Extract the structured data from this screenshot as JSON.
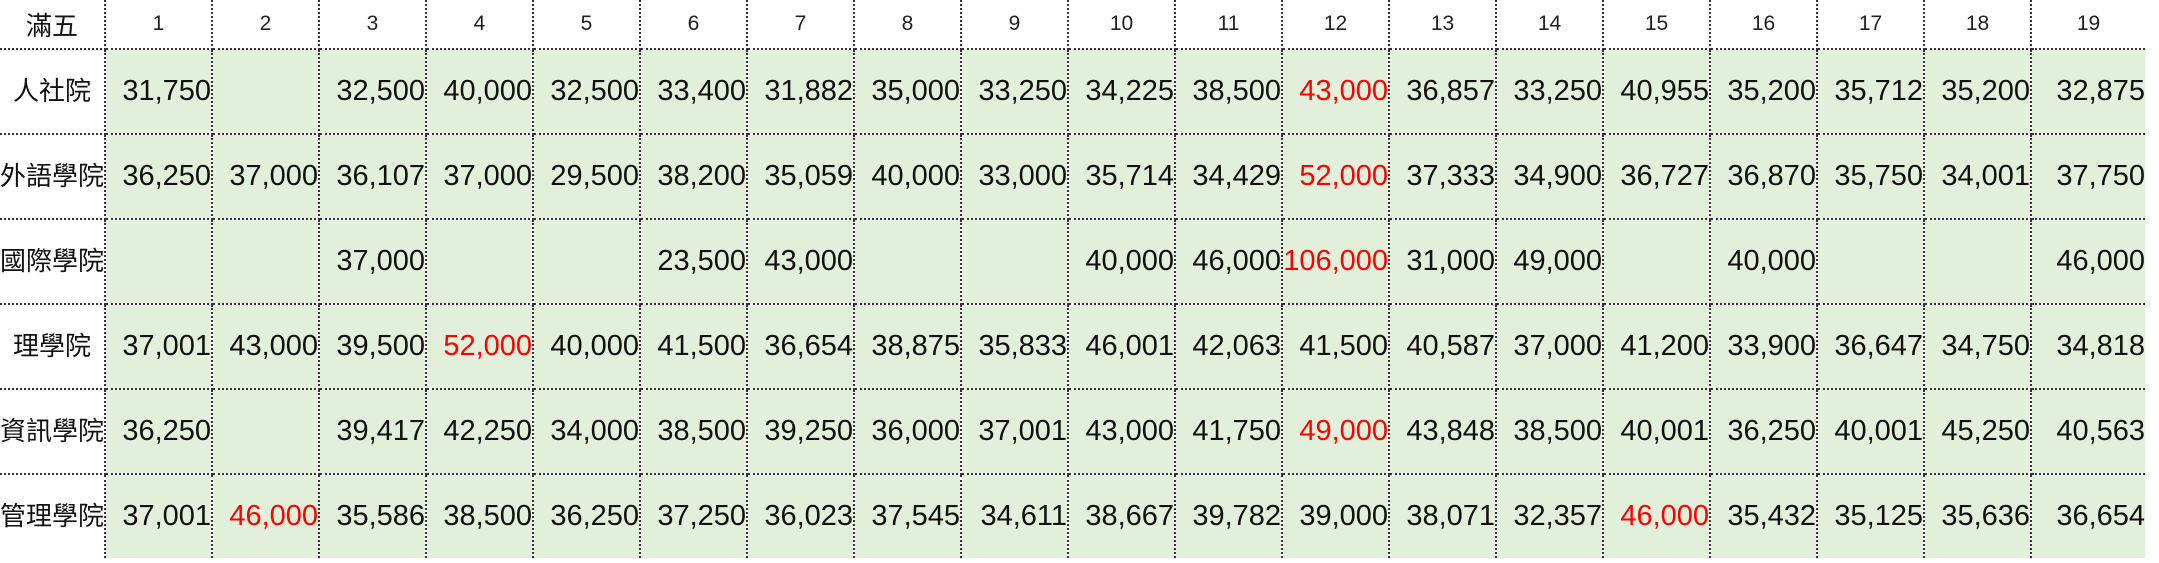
{
  "table": {
    "corner": "滿五",
    "columns": [
      "1",
      "2",
      "3",
      "4",
      "5",
      "6",
      "7",
      "8",
      "9",
      "10",
      "11",
      "12",
      "13",
      "14",
      "15",
      "16",
      "17",
      "18",
      "19"
    ],
    "rows": [
      {
        "label": "人社院",
        "cells": [
          "31,750",
          "",
          "32,500",
          "40,000",
          "32,500",
          "33,400",
          "31,882",
          "35,000",
          "33,250",
          "34,225",
          "38,500",
          "43,000",
          "36,857",
          "33,250",
          "40,955",
          "35,200",
          "35,712",
          "35,200",
          "32,875"
        ],
        "highlight": [
          11
        ]
      },
      {
        "label": "外語學院",
        "cells": [
          "36,250",
          "37,000",
          "36,107",
          "37,000",
          "29,500",
          "38,200",
          "35,059",
          "40,000",
          "33,000",
          "35,714",
          "34,429",
          "52,000",
          "37,333",
          "34,900",
          "36,727",
          "36,870",
          "35,750",
          "34,001",
          "37,750"
        ],
        "highlight": [
          11
        ]
      },
      {
        "label": "國際學院",
        "cells": [
          "",
          "",
          "37,000",
          "",
          "",
          "23,500",
          "43,000",
          "",
          "",
          "40,000",
          "46,000",
          "106,000",
          "31,000",
          "49,000",
          "",
          "40,000",
          "",
          "",
          "46,000"
        ],
        "highlight": [
          11
        ]
      },
      {
        "label": "理學院",
        "cells": [
          "37,001",
          "43,000",
          "39,500",
          "52,000",
          "40,000",
          "41,500",
          "36,654",
          "38,875",
          "35,833",
          "46,001",
          "42,063",
          "41,500",
          "40,587",
          "37,000",
          "41,200",
          "33,900",
          "36,647",
          "34,750",
          "34,818"
        ],
        "highlight": [
          3
        ]
      },
      {
        "label": "資訊學院",
        "cells": [
          "36,250",
          "",
          "39,417",
          "42,250",
          "34,000",
          "38,500",
          "39,250",
          "36,000",
          "37,001",
          "43,000",
          "41,750",
          "49,000",
          "43,848",
          "38,500",
          "40,001",
          "36,250",
          "40,001",
          "45,250",
          "40,563"
        ],
        "highlight": [
          11
        ]
      },
      {
        "label": "管理學院",
        "cells": [
          "37,001",
          "46,000",
          "35,586",
          "38,500",
          "36,250",
          "37,250",
          "36,023",
          "37,545",
          "34,611",
          "38,667",
          "39,782",
          "39,000",
          "38,071",
          "32,357",
          "46,000",
          "35,432",
          "35,125",
          "35,636",
          "36,654"
        ],
        "highlight": [
          1,
          14
        ]
      }
    ],
    "colors": {
      "cell_fill": "#e2efda",
      "highlight_text": "#ff0000",
      "text": "#111111",
      "grid": "#333333"
    }
  }
}
